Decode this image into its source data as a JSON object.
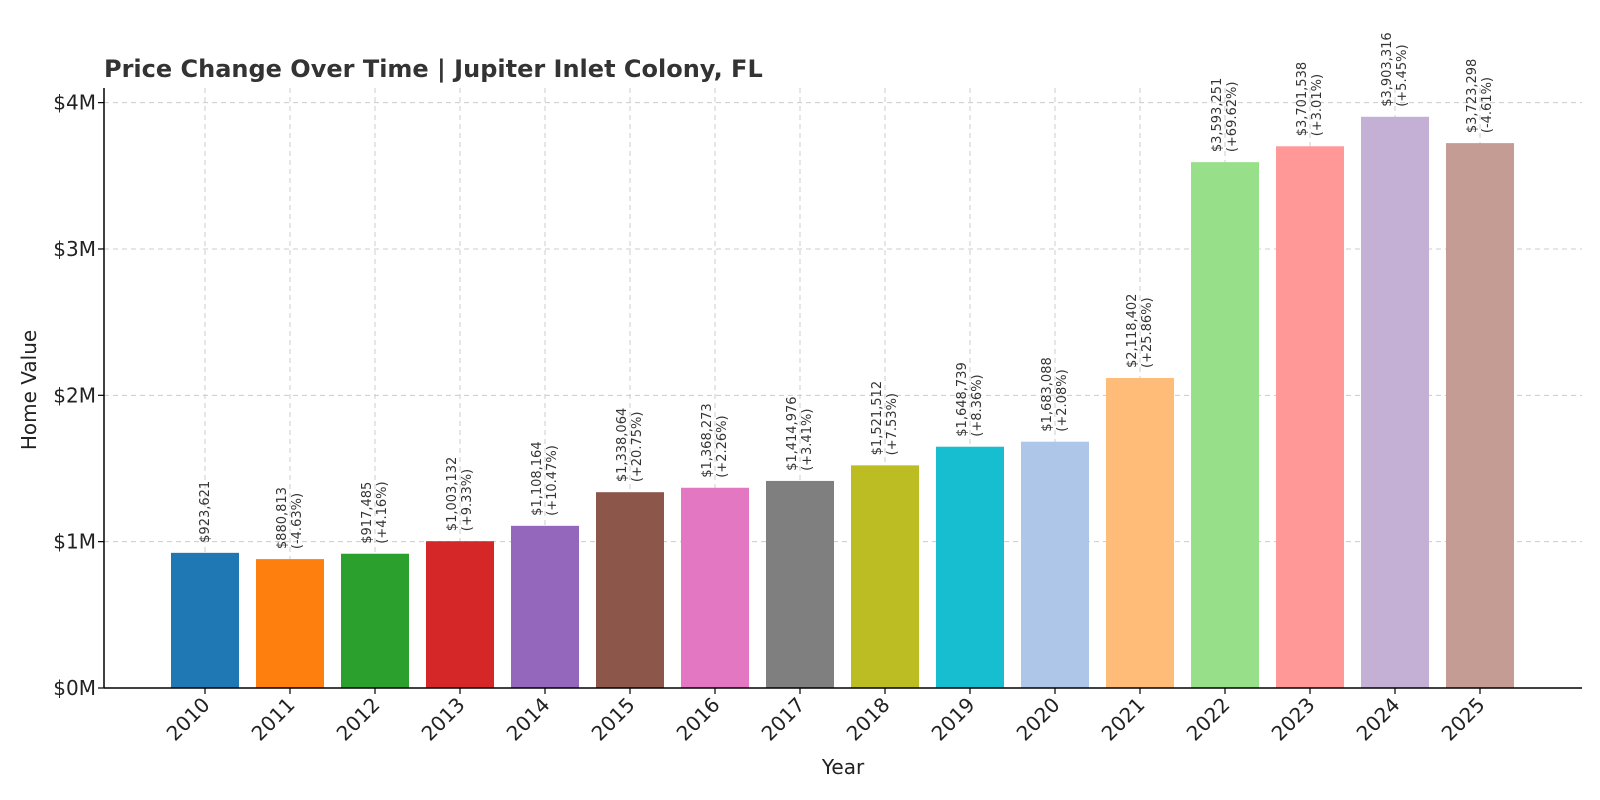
{
  "chart_data": {
    "type": "bar",
    "title": "Price Change Over Time | Jupiter Inlet Colony, FL",
    "xlabel": "Year",
    "ylabel": "Home Value",
    "ylim": [
      0,
      4100000
    ],
    "yticks": [
      0,
      1000000,
      2000000,
      3000000,
      4000000
    ],
    "ytick_labels": [
      "$0M",
      "$1M",
      "$2M",
      "$3M",
      "$4M"
    ],
    "grid": true,
    "categories": [
      "2010",
      "2011",
      "2012",
      "2013",
      "2014",
      "2015",
      "2016",
      "2017",
      "2018",
      "2019",
      "2020",
      "2021",
      "2022",
      "2023",
      "2024",
      "2025"
    ],
    "values": [
      923621,
      880813,
      917485,
      1003132,
      1108164,
      1338064,
      1368273,
      1414976,
      1521512,
      1648739,
      1683088,
      2118402,
      3593251,
      3701538,
      3903316,
      3723298
    ],
    "value_labels": [
      "$923,621",
      "$880,813",
      "$917,485",
      "$1,003,132",
      "$1,108,164",
      "$1,338,064",
      "$1,368,273",
      "$1,414,976",
      "$1,521,512",
      "$1,648,739",
      "$1,683,088",
      "$2,118,402",
      "$3,593,251",
      "$3,701,538",
      "$3,903,316",
      "$3,723,298"
    ],
    "change_labels": [
      "",
      "(-4.63%)",
      "(+4.16%)",
      "(+9.33%)",
      "(+10.47%)",
      "(+20.75%)",
      "(+2.26%)",
      "(+3.41%)",
      "(+7.53%)",
      "(+8.36%)",
      "(+2.08%)",
      "(+25.86%)",
      "(+69.62%)",
      "(+3.01%)",
      "(+5.45%)",
      "(-4.61%)"
    ],
    "colors": [
      "#1f77b4",
      "#ff7f0e",
      "#2ca02c",
      "#d62728",
      "#9467bd",
      "#8c564b",
      "#e377c2",
      "#7f7f7f",
      "#bcbd22",
      "#17becf",
      "#aec7e8",
      "#ffbb78",
      "#98df8a",
      "#ff9896",
      "#c5b0d5",
      "#c49c94"
    ]
  }
}
